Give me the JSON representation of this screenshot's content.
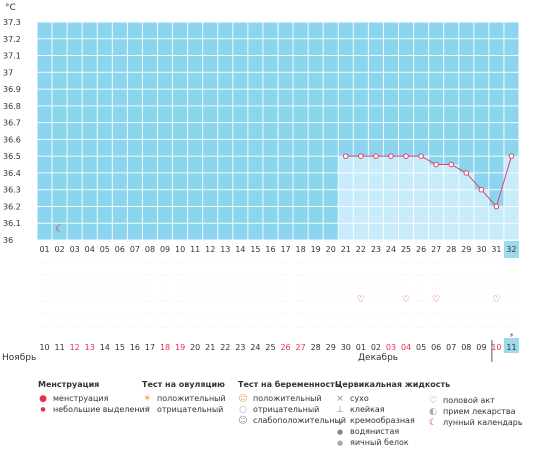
{
  "chart_data": {
    "type": "line",
    "unit": "°C",
    "ylim": [
      36.0,
      37.3
    ],
    "yticks": [
      "37.3",
      "37.2",
      "37.1",
      "37",
      "36.9",
      "36.8",
      "36.7",
      "36.6",
      "36.5",
      "36.4",
      "36.3",
      "36.2",
      "36.1",
      "36"
    ],
    "cycle_day_labels": [
      "01",
      "02",
      "03",
      "04",
      "05",
      "06",
      "07",
      "08",
      "09",
      "10",
      "11",
      "12",
      "13",
      "14",
      "15",
      "16",
      "17",
      "18",
      "19",
      "20",
      "21",
      "22",
      "23",
      "24",
      "25",
      "26",
      "27",
      "28",
      "29",
      "30",
      "31",
      "32"
    ],
    "date_labels": [
      "10",
      "11",
      "12",
      "13",
      "14",
      "15",
      "16",
      "17",
      "18",
      "19",
      "20",
      "21",
      "22",
      "23",
      "24",
      "25",
      "26",
      "27",
      "28",
      "29",
      "30",
      "01",
      "02",
      "03",
      "04",
      "05",
      "06",
      "07",
      "08",
      "09",
      "10",
      "11"
    ],
    "date_colors": [
      "#333",
      "#333",
      "#e0334d",
      "#e0334d",
      "#333",
      "#333",
      "#333",
      "#333",
      "#e0334d",
      "#e0334d",
      "#333",
      "#333",
      "#333",
      "#333",
      "#333",
      "#333",
      "#e0334d",
      "#e0334d",
      "#333",
      "#333",
      "#333",
      "#333",
      "#333",
      "#e0334d",
      "#e0334d",
      "#333",
      "#333",
      "#333",
      "#333",
      "#333",
      "#e0334d",
      "#333"
    ],
    "temperatures": [
      {
        "day": 21,
        "temp": 36.5
      },
      {
        "day": 22,
        "temp": 36.5
      },
      {
        "day": 23,
        "temp": 36.5
      },
      {
        "day": 24,
        "temp": 36.5
      },
      {
        "day": 25,
        "temp": 36.5
      },
      {
        "day": 26,
        "temp": 36.5
      },
      {
        "day": 27,
        "temp": 36.45
      },
      {
        "day": 28,
        "temp": 36.45
      },
      {
        "day": 29,
        "temp": 36.4
      },
      {
        "day": 30,
        "temp": 36.3
      },
      {
        "day": 31,
        "temp": 36.2
      },
      {
        "day": 32,
        "temp": 36.5
      }
    ],
    "markers": [
      {
        "day": 2,
        "type": "lunar-calendar"
      },
      {
        "day": 22,
        "type": "intercourse"
      },
      {
        "day": 25,
        "type": "intercourse"
      },
      {
        "day": 27,
        "type": "intercourse"
      },
      {
        "day": 31,
        "type": "intercourse"
      },
      {
        "day": 32,
        "type": "dry"
      }
    ],
    "highlight_day": 32,
    "colors": {
      "plot_bg": "#8bd5ef",
      "bar": "#c8ecfb",
      "grid": "#ffffff",
      "line": "#d9466e",
      "highlight": "#9fd9ee"
    }
  },
  "months": {
    "first": "Ноябрь",
    "second": "Декабрь"
  },
  "legend": {
    "menstruation": {
      "title": "Менструация",
      "items": [
        "менструация",
        "небольшие выделения"
      ]
    },
    "ovulation": {
      "title": "Тест на овуляцию",
      "items": [
        "положительный",
        "отрицательный"
      ]
    },
    "pregnancy": {
      "title": "Тест на беременность",
      "items": [
        "положительный",
        "отрицательный",
        "слабоположительный"
      ]
    },
    "cervical": {
      "title": "Цервикальная жидкость",
      "items": [
        "сухо",
        "клейкая",
        "кремообразная",
        "водянистая",
        "яичный белок"
      ]
    },
    "other": {
      "items": [
        "половой акт",
        "прием лекарства",
        "лунный календарь"
      ]
    }
  }
}
